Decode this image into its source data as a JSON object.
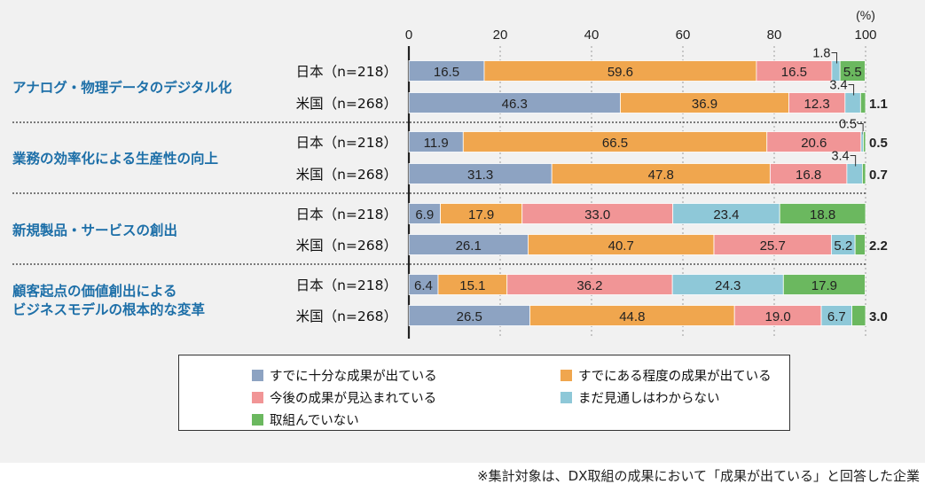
{
  "chart_data": {
    "type": "bar",
    "orientation": "horizontal",
    "stacked": true,
    "unit_label": "(%)",
    "xlim": [
      0,
      100
    ],
    "x_ticks": [
      "0",
      "20",
      "40",
      "60",
      "80",
      "100"
    ],
    "grid": true,
    "legend_position": "bottom",
    "categories": [
      {
        "label": "アナログ・物理データのデジタル化",
        "lines": [
          "アナログ・物理データのデジタル化"
        ]
      },
      {
        "label": "業務の効率化による生産性の向上",
        "lines": [
          "業務の効率化による生産性の向上"
        ]
      },
      {
        "label": "新規製品・サービスの創出",
        "lines": [
          "新規製品・サービスの創出"
        ]
      },
      {
        "label": "顧客起点の価値創出による ビジネスモデルの根本的な変革",
        "lines": [
          "顧客起点の価値創出による",
          "ビジネスモデルの根本的な変革"
        ]
      }
    ],
    "series": [
      {
        "name": "すでに十分な成果が出ている",
        "color": "#8da3c2"
      },
      {
        "name": "すでにある程度の成果が出ている",
        "color": "#f0a64e"
      },
      {
        "name": "今後の成果が見込まれている",
        "color": "#f19596"
      },
      {
        "name": "まだ見通しはわからない",
        "color": "#8ec8d8"
      },
      {
        "name": "取組んでいない",
        "color": "#6bb85f"
      }
    ],
    "rows": [
      {
        "category": 0,
        "label": "日本（n=218）",
        "values": [
          16.5,
          59.6,
          16.5,
          1.8,
          5.5
        ],
        "labels": [
          "16.5",
          "59.6",
          "16.5",
          "1.8",
          "5.5"
        ]
      },
      {
        "category": 0,
        "label": "米国（n=268）",
        "values": [
          46.3,
          36.9,
          12.3,
          3.4,
          1.1
        ],
        "labels": [
          "46.3",
          "36.9",
          "12.3",
          "3.4",
          "1.1"
        ]
      },
      {
        "category": 1,
        "label": "日本（n=218）",
        "values": [
          11.9,
          66.5,
          20.6,
          0.5,
          0.5
        ],
        "labels": [
          "11.9",
          "66.5",
          "20.6",
          "0.5",
          "0.5"
        ]
      },
      {
        "category": 1,
        "label": "米国（n=268）",
        "values": [
          31.3,
          47.8,
          16.8,
          3.4,
          0.7
        ],
        "labels": [
          "31.3",
          "47.8",
          "16.8",
          "3.4",
          "0.7"
        ]
      },
      {
        "category": 2,
        "label": "日本（n=218）",
        "values": [
          6.9,
          17.9,
          33.0,
          23.4,
          18.8
        ],
        "labels": [
          "6.9",
          "17.9",
          "33.0",
          "23.4",
          "18.8"
        ]
      },
      {
        "category": 2,
        "label": "米国（n=268）",
        "values": [
          26.1,
          40.7,
          25.7,
          5.2,
          2.2
        ],
        "labels": [
          "26.1",
          "40.7",
          "25.7",
          "5.2",
          "2.2"
        ]
      },
      {
        "category": 3,
        "label": "日本（n=218）",
        "values": [
          6.4,
          15.1,
          36.2,
          24.3,
          17.9
        ],
        "labels": [
          "6.4",
          "15.1",
          "36.2",
          "24.3",
          "17.9"
        ]
      },
      {
        "category": 3,
        "label": "米国（n=268）",
        "values": [
          26.5,
          44.8,
          19.0,
          6.7,
          3.0
        ],
        "labels": [
          "26.5",
          "44.8",
          "19.0",
          "6.7",
          "3.0"
        ]
      }
    ]
  },
  "footnote": "※集計対象は、DX取組の成果において「成果が出ている」と回答した企業"
}
